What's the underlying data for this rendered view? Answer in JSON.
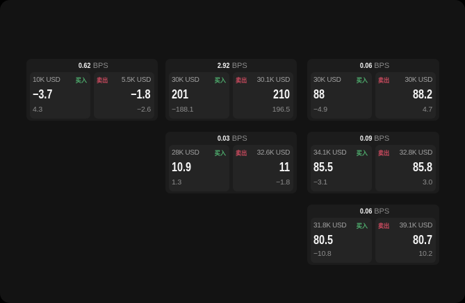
{
  "labels": {
    "buy": "买入",
    "sell": "卖出",
    "bps_unit": "BPS"
  },
  "colors": {
    "buy": "#4fae6e",
    "sell": "#c94a5e"
  },
  "cards": [
    {
      "row": 1,
      "col": 1,
      "bps": "0.62",
      "buy": {
        "amount": "10K USD",
        "value": "−3.7",
        "sub": "4.3"
      },
      "sell": {
        "amount": "5.5K USD",
        "value": "−1.8",
        "sub": "−2.6"
      }
    },
    {
      "row": 1,
      "col": 2,
      "bps": "2.92",
      "buy": {
        "amount": "30K USD",
        "value": "201",
        "sub": "−188.1"
      },
      "sell": {
        "amount": "30.1K USD",
        "value": "210",
        "sub": "196.5"
      }
    },
    {
      "row": 1,
      "col": 3,
      "bps": "0.06",
      "buy": {
        "amount": "30K USD",
        "value": "88",
        "sub": "−4.9"
      },
      "sell": {
        "amount": "30K USD",
        "value": "88.2",
        "sub": "4.7"
      }
    },
    {
      "row": 2,
      "col": 2,
      "bps": "0.03",
      "buy": {
        "amount": "28K USD",
        "value": "10.9",
        "sub": "1.3"
      },
      "sell": {
        "amount": "32.6K USD",
        "value": "11",
        "sub": "−1.8"
      }
    },
    {
      "row": 2,
      "col": 3,
      "bps": "0.09",
      "buy": {
        "amount": "34.1K USD",
        "value": "85.5",
        "sub": "−3.1"
      },
      "sell": {
        "amount": "32.8K USD",
        "value": "85.8",
        "sub": "3.0"
      }
    },
    {
      "row": 3,
      "col": 3,
      "bps": "0.06",
      "buy": {
        "amount": "31.8K USD",
        "value": "80.5",
        "sub": "−10.8"
      },
      "sell": {
        "amount": "39.1K USD",
        "value": "80.7",
        "sub": "10.2"
      }
    }
  ]
}
